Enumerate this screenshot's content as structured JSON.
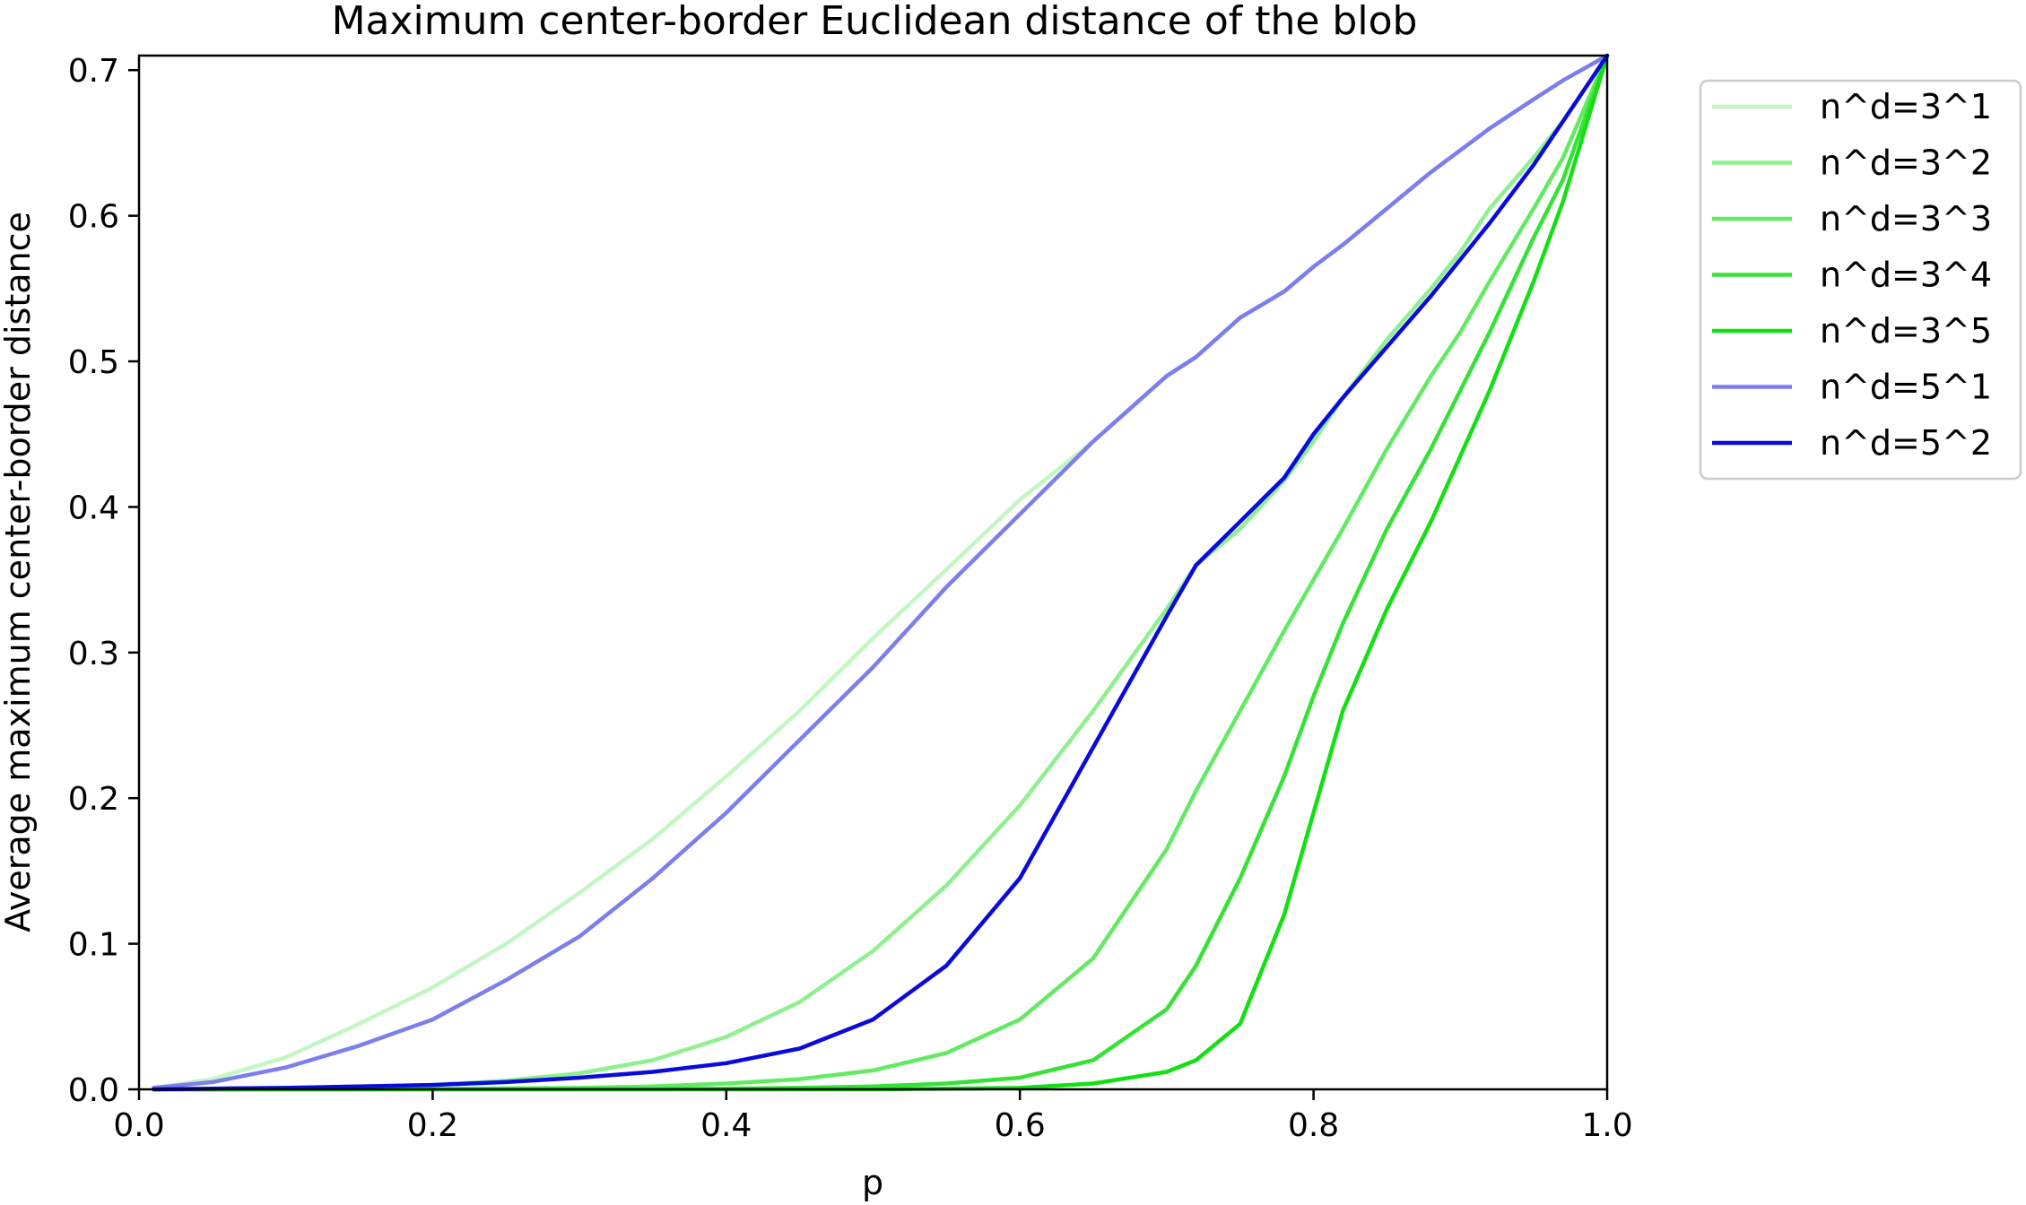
{
  "chart_data": {
    "type": "line",
    "title": "Maximum center-border Euclidean distance of the blob",
    "xlabel": "p",
    "ylabel": "Average maximum center-border distance",
    "xlim": [
      0.0,
      1.0
    ],
    "ylim": [
      0.0,
      0.71
    ],
    "xticks": [
      "0.0",
      "0.2",
      "0.4",
      "0.6",
      "0.8",
      "1.0"
    ],
    "yticks": [
      "0.0",
      "0.1",
      "0.2",
      "0.3",
      "0.4",
      "0.5",
      "0.6",
      "0.7"
    ],
    "grid": false,
    "legend_position": "outside-top-right",
    "x": [
      0.01,
      0.05,
      0.1,
      0.15,
      0.2,
      0.25,
      0.3,
      0.35,
      0.4,
      0.45,
      0.5,
      0.55,
      0.6,
      0.65,
      0.7,
      0.72,
      0.75,
      0.78,
      0.8,
      0.82,
      0.85,
      0.88,
      0.9,
      0.92,
      0.95,
      0.97,
      1.0
    ],
    "series": [
      {
        "name": "n^d=3^1",
        "color": "#c2f7c2",
        "values": [
          0.001,
          0.007,
          0.022,
          0.045,
          0.07,
          0.1,
          0.135,
          0.172,
          0.215,
          0.26,
          0.31,
          0.357,
          0.405,
          0.445,
          0.49,
          0.503,
          0.53,
          0.548,
          0.565,
          0.58,
          0.605,
          0.63,
          0.645,
          0.66,
          0.68,
          0.693,
          0.71
        ]
      },
      {
        "name": "n^d=3^2",
        "color": "#8ef08e",
        "values": [
          0.0,
          0.0005,
          0.001,
          0.002,
          0.003,
          0.006,
          0.011,
          0.02,
          0.036,
          0.06,
          0.095,
          0.14,
          0.195,
          0.26,
          0.33,
          0.36,
          0.385,
          0.418,
          0.445,
          0.475,
          0.515,
          0.55,
          0.575,
          0.605,
          0.64,
          0.665,
          0.71
        ]
      },
      {
        "name": "n^d=3^3",
        "color": "#63ea63",
        "values": [
          0.0,
          0.0,
          0.0,
          0.0,
          0.0003,
          0.0006,
          0.001,
          0.002,
          0.004,
          0.007,
          0.013,
          0.025,
          0.048,
          0.09,
          0.165,
          0.205,
          0.26,
          0.315,
          0.35,
          0.385,
          0.44,
          0.49,
          0.52,
          0.555,
          0.605,
          0.64,
          0.71
        ]
      },
      {
        "name": "n^d=3^4",
        "color": "#36e236",
        "values": [
          0.0,
          0.0,
          0.0,
          0.0,
          0.0,
          0.0,
          0.0,
          0.0,
          0.0005,
          0.001,
          0.002,
          0.004,
          0.008,
          0.02,
          0.055,
          0.085,
          0.145,
          0.215,
          0.27,
          0.32,
          0.385,
          0.44,
          0.48,
          0.52,
          0.585,
          0.625,
          0.71
        ]
      },
      {
        "name": "n^d=3^5",
        "color": "#13e013",
        "values": [
          0.0,
          0.0,
          0.0,
          0.0,
          0.0,
          0.0,
          0.0,
          0.0,
          0.0,
          0.0,
          0.0,
          0.0005,
          0.001,
          0.004,
          0.012,
          0.02,
          0.045,
          0.12,
          0.19,
          0.26,
          0.33,
          0.39,
          0.435,
          0.48,
          0.555,
          0.61,
          0.71
        ]
      },
      {
        "name": "n^d=5^1",
        "color": "#7d7df0",
        "values": [
          0.001,
          0.005,
          0.015,
          0.03,
          0.048,
          0.075,
          0.105,
          0.145,
          0.19,
          0.24,
          0.29,
          0.345,
          0.395,
          0.445,
          0.49,
          0.503,
          0.53,
          0.548,
          0.565,
          0.58,
          0.605,
          0.63,
          0.645,
          0.66,
          0.68,
          0.693,
          0.71
        ]
      },
      {
        "name": "n^d=5^2",
        "color": "#0a0add",
        "values": [
          0.0,
          0.0005,
          0.001,
          0.002,
          0.003,
          0.005,
          0.008,
          0.012,
          0.018,
          0.028,
          0.048,
          0.085,
          0.145,
          0.235,
          0.325,
          0.36,
          0.39,
          0.42,
          0.45,
          0.475,
          0.51,
          0.545,
          0.57,
          0.595,
          0.635,
          0.665,
          0.71
        ]
      }
    ]
  }
}
